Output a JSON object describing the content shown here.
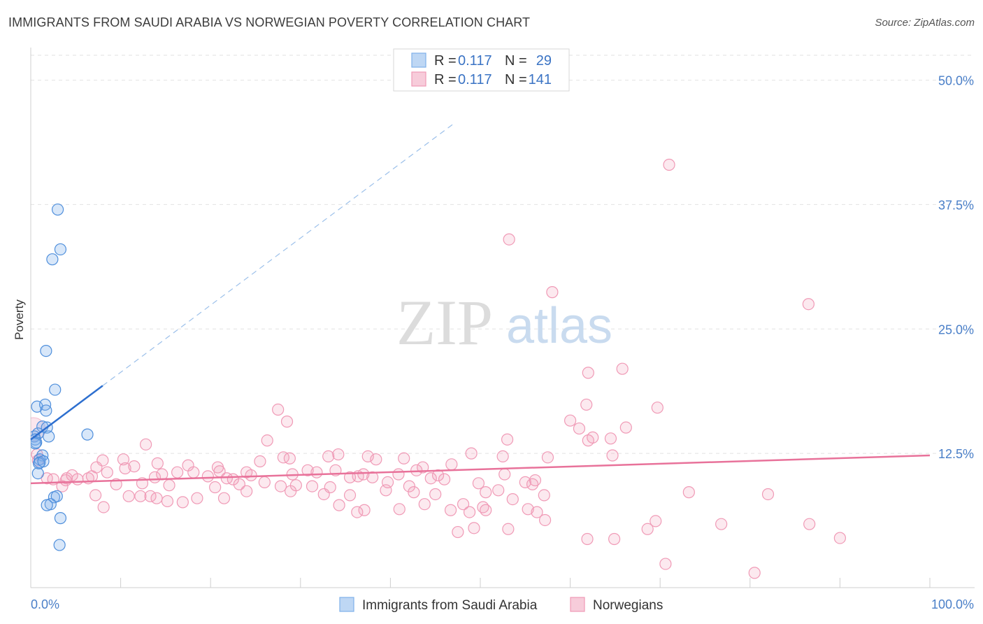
{
  "title": "IMMIGRANTS FROM SAUDI ARABIA VS NORWEGIAN POVERTY CORRELATION CHART",
  "source": "Source: ZipAtlas.com",
  "watermark": {
    "zip": "ZIP",
    "atlas": "atlas"
  },
  "chart_data": {
    "type": "scatter",
    "title": "IMMIGRANTS FROM SAUDI ARABIA VS NORWEGIAN POVERTY CORRELATION CHART",
    "xlabel": "",
    "ylabel": "Poverty",
    "xlim": [
      0,
      100
    ],
    "ylim": [
      0,
      52.5
    ],
    "y_ticks": [
      12.5,
      25.0,
      37.5,
      50.0
    ],
    "y_tick_labels": [
      "12.5%",
      "25.0%",
      "37.5%",
      "50.0%"
    ],
    "x_tick_labels": {
      "min": "0.0%",
      "max": "100.0%"
    },
    "grid": true,
    "legend": [
      {
        "name": "Immigrants from Saudi Arabia",
        "r_label": "R =",
        "r": "0.117",
        "n_label": "N =",
        "n": "29",
        "color": "#7eb0ea"
      },
      {
        "name": "Norwegians",
        "r_label": "R =",
        "r": "0.117",
        "n_label": "N =",
        "n": "141",
        "color": "#f09ab6"
      }
    ],
    "series": [
      {
        "name": "Immigrants from Saudi Arabia",
        "color": "#7eb0ea",
        "trend": {
          "x1": 0.0,
          "y1": 13.9,
          "x2": 8.0,
          "y2": 19.3,
          "dash_to_x": 47.0,
          "dash_to_y": 45.6
        },
        "points": [
          [
            3.0,
            37.0
          ],
          [
            3.3,
            33.0
          ],
          [
            2.4,
            32.0
          ],
          [
            1.7,
            22.8
          ],
          [
            2.7,
            18.9
          ],
          [
            0.7,
            17.2
          ],
          [
            1.6,
            17.4
          ],
          [
            1.7,
            16.8
          ],
          [
            1.3,
            15.2
          ],
          [
            1.8,
            15.1
          ],
          [
            6.3,
            14.4
          ],
          [
            0.8,
            14.5
          ],
          [
            0.4,
            14.2
          ],
          [
            0.5,
            13.9
          ],
          [
            0.6,
            13.6
          ],
          [
            0.5,
            13.5
          ],
          [
            2.0,
            14.2
          ],
          [
            1.3,
            12.3
          ],
          [
            1.0,
            11.9
          ],
          [
            1.0,
            11.6
          ],
          [
            0.9,
            11.5
          ],
          [
            2.6,
            8.1
          ],
          [
            2.9,
            8.2
          ],
          [
            2.2,
            7.4
          ],
          [
            1.8,
            7.3
          ],
          [
            3.3,
            6.0
          ],
          [
            3.2,
            3.3
          ],
          [
            0.8,
            10.5
          ],
          [
            1.4,
            11.7
          ]
        ]
      },
      {
        "name": "Norwegians",
        "color": "#f09ab6",
        "trend": {
          "x1": 0.0,
          "y1": 9.5,
          "x2": 100.0,
          "y2": 12.3
        },
        "points": [
          [
            71.0,
            41.5
          ],
          [
            53.2,
            34.0
          ],
          [
            58.0,
            28.7
          ],
          [
            86.5,
            27.5
          ],
          [
            62.0,
            20.6
          ],
          [
            65.8,
            21.0
          ],
          [
            61.8,
            17.4
          ],
          [
            69.7,
            17.1
          ],
          [
            27.5,
            16.9
          ],
          [
            60.0,
            15.8
          ],
          [
            28.5,
            15.7
          ],
          [
            66.2,
            15.1
          ],
          [
            61.0,
            15.0
          ],
          [
            62.5,
            14.1
          ],
          [
            64.5,
            14.0
          ],
          [
            53.0,
            13.9
          ],
          [
            62.0,
            13.8
          ],
          [
            26.3,
            13.8
          ],
          [
            12.8,
            13.4
          ],
          [
            49.0,
            12.5
          ],
          [
            0.7,
            12.4
          ],
          [
            37.5,
            12.2
          ],
          [
            33.1,
            12.2
          ],
          [
            28.1,
            12.1
          ],
          [
            34.2,
            12.4
          ],
          [
            52.5,
            12.2
          ],
          [
            64.7,
            12.3
          ],
          [
            41.5,
            12.0
          ],
          [
            0.8,
            11.8
          ],
          [
            38.4,
            11.9
          ],
          [
            25.5,
            11.7
          ],
          [
            57.5,
            12.1
          ],
          [
            10.3,
            11.9
          ],
          [
            28.8,
            12.0
          ],
          [
            46.8,
            11.4
          ],
          [
            8.0,
            11.8
          ],
          [
            17.5,
            11.3
          ],
          [
            20.8,
            11.1
          ],
          [
            43.6,
            11.1
          ],
          [
            42.9,
            10.8
          ],
          [
            7.3,
            11.1
          ],
          [
            11.5,
            11.2
          ],
          [
            16.3,
            10.6
          ],
          [
            24.0,
            10.6
          ],
          [
            30.8,
            10.8
          ],
          [
            10.5,
            11.0
          ],
          [
            33.9,
            10.8
          ],
          [
            21.0,
            10.7
          ],
          [
            18.1,
            10.6
          ],
          [
            37.0,
            10.4
          ],
          [
            29.1,
            10.4
          ],
          [
            14.6,
            10.4
          ],
          [
            35.5,
            10.1
          ],
          [
            45.3,
            10.3
          ],
          [
            40.9,
            10.4
          ],
          [
            52.7,
            10.4
          ],
          [
            4.6,
            10.3
          ],
          [
            6.8,
            10.2
          ],
          [
            31.8,
            10.6
          ],
          [
            19.7,
            10.2
          ],
          [
            24.5,
            10.3
          ],
          [
            1.8,
            10.0
          ],
          [
            5.2,
            9.9
          ],
          [
            36.4,
            10.2
          ],
          [
            38.0,
            10.1
          ],
          [
            4.0,
            10.0
          ],
          [
            6.4,
            10.0
          ],
          [
            13.8,
            10.1
          ],
          [
            8.5,
            10.6
          ],
          [
            14.1,
            11.5
          ],
          [
            44.5,
            10.0
          ],
          [
            39.7,
            9.6
          ],
          [
            46.0,
            9.9
          ],
          [
            21.8,
            10.0
          ],
          [
            22.5,
            9.9
          ],
          [
            2.5,
            9.9
          ],
          [
            3.9,
            9.8
          ],
          [
            26.0,
            9.6
          ],
          [
            12.4,
            9.5
          ],
          [
            29.5,
            9.3
          ],
          [
            9.5,
            9.4
          ],
          [
            15.4,
            9.3
          ],
          [
            23.2,
            9.4
          ],
          [
            31.3,
            9.2
          ],
          [
            20.5,
            9.1
          ],
          [
            27.8,
            9.2
          ],
          [
            33.3,
            9.1
          ],
          [
            42.1,
            9.2
          ],
          [
            49.8,
            9.5
          ],
          [
            39.5,
            8.8
          ],
          [
            55.0,
            9.6
          ],
          [
            52.0,
            8.8
          ],
          [
            50.6,
            8.6
          ],
          [
            56.1,
            9.8
          ],
          [
            55.8,
            9.4
          ],
          [
            24.0,
            8.7
          ],
          [
            28.9,
            8.7
          ],
          [
            35.5,
            8.3
          ],
          [
            32.6,
            8.4
          ],
          [
            42.6,
            8.6
          ],
          [
            45.0,
            8.4
          ],
          [
            57.1,
            8.3
          ],
          [
            3.5,
            9.2
          ],
          [
            7.2,
            8.3
          ],
          [
            10.9,
            8.2
          ],
          [
            12.2,
            8.2
          ],
          [
            13.3,
            8.2
          ],
          [
            14.0,
            8.0
          ],
          [
            18.5,
            8.0
          ],
          [
            21.5,
            8.0
          ],
          [
            15.2,
            7.7
          ],
          [
            8.1,
            7.1
          ],
          [
            16.9,
            7.6
          ],
          [
            34.3,
            7.3
          ],
          [
            43.8,
            7.4
          ],
          [
            48.1,
            7.4
          ],
          [
            53.6,
            7.9
          ],
          [
            55.3,
            6.9
          ],
          [
            50.3,
            7.1
          ],
          [
            41.0,
            6.9
          ],
          [
            37.1,
            6.8
          ],
          [
            36.3,
            6.6
          ],
          [
            46.7,
            6.8
          ],
          [
            48.8,
            6.6
          ],
          [
            50.6,
            6.8
          ],
          [
            56.3,
            6.6
          ],
          [
            57.2,
            5.8
          ],
          [
            69.5,
            5.7
          ],
          [
            76.8,
            5.4
          ],
          [
            86.6,
            5.4
          ],
          [
            49.3,
            5.0
          ],
          [
            47.5,
            4.6
          ],
          [
            68.6,
            4.9
          ],
          [
            53.1,
            4.9
          ],
          [
            61.9,
            3.9
          ],
          [
            64.9,
            3.9
          ],
          [
            90.0,
            4.0
          ],
          [
            70.6,
            1.4
          ],
          [
            80.5,
            0.5
          ],
          [
            82.0,
            8.4
          ],
          [
            73.2,
            8.6
          ]
        ]
      }
    ]
  }
}
